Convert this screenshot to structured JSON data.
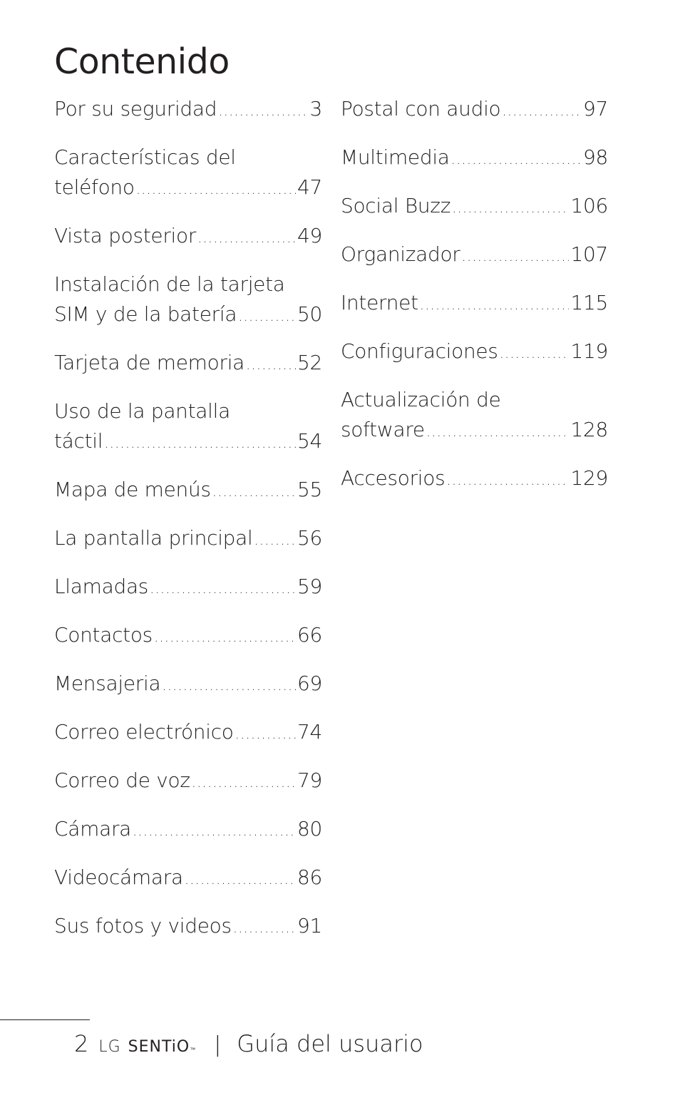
{
  "title": "Contenido",
  "left_column": [
    {
      "lines": [
        "Por su seguridad"
      ],
      "page": "3"
    },
    {
      "lines": [
        "Características del",
        "teléfono"
      ],
      "page": "47"
    },
    {
      "lines": [
        "Vista posterior"
      ],
      "page": "49"
    },
    {
      "lines": [
        "Instalación de la tarjeta",
        "SIM y de la batería"
      ],
      "page": "50"
    },
    {
      "lines": [
        "Tarjeta de memoria"
      ],
      "page": "52"
    },
    {
      "lines": [
        "Uso de la pantalla",
        "táctil"
      ],
      "page": "54"
    },
    {
      "lines": [
        "Mapa de menús"
      ],
      "page": "55"
    },
    {
      "lines": [
        "La pantalla principal"
      ],
      "page": "56"
    },
    {
      "lines": [
        "Llamadas"
      ],
      "page": "59"
    },
    {
      "lines": [
        "Contactos"
      ],
      "page": "66"
    },
    {
      "lines": [
        "Mensajeria"
      ],
      "page": "69"
    },
    {
      "lines": [
        "Correo electrónico"
      ],
      "page": "74"
    },
    {
      "lines": [
        "Correo de voz"
      ],
      "page": "79"
    },
    {
      "lines": [
        "Cámara"
      ],
      "page": "80"
    },
    {
      "lines": [
        "Videocámara"
      ],
      "page": "86"
    },
    {
      "lines": [
        "Sus fotos y videos"
      ],
      "page": "91"
    }
  ],
  "right_column": [
    {
      "lines": [
        "Postal con audio"
      ],
      "page": "97"
    },
    {
      "lines": [
        "Multimedia"
      ],
      "page": "98"
    },
    {
      "lines": [
        "Social Buzz"
      ],
      "page": "106"
    },
    {
      "lines": [
        "Organizador"
      ],
      "page": "107"
    },
    {
      "lines": [
        "Internet"
      ],
      "page": "115"
    },
    {
      "lines": [
        "Configuraciones"
      ],
      "page": "119"
    },
    {
      "lines": [
        "Actualización de",
        "software"
      ],
      "page": "128"
    },
    {
      "lines": [
        "Accesorios"
      ],
      "page": "129"
    }
  ],
  "footer": {
    "page_number": "2",
    "brand_lg": "LG",
    "brand_model": "SENTiO",
    "trademark": "™",
    "separator": "|",
    "guide": "Guía del usuario"
  }
}
